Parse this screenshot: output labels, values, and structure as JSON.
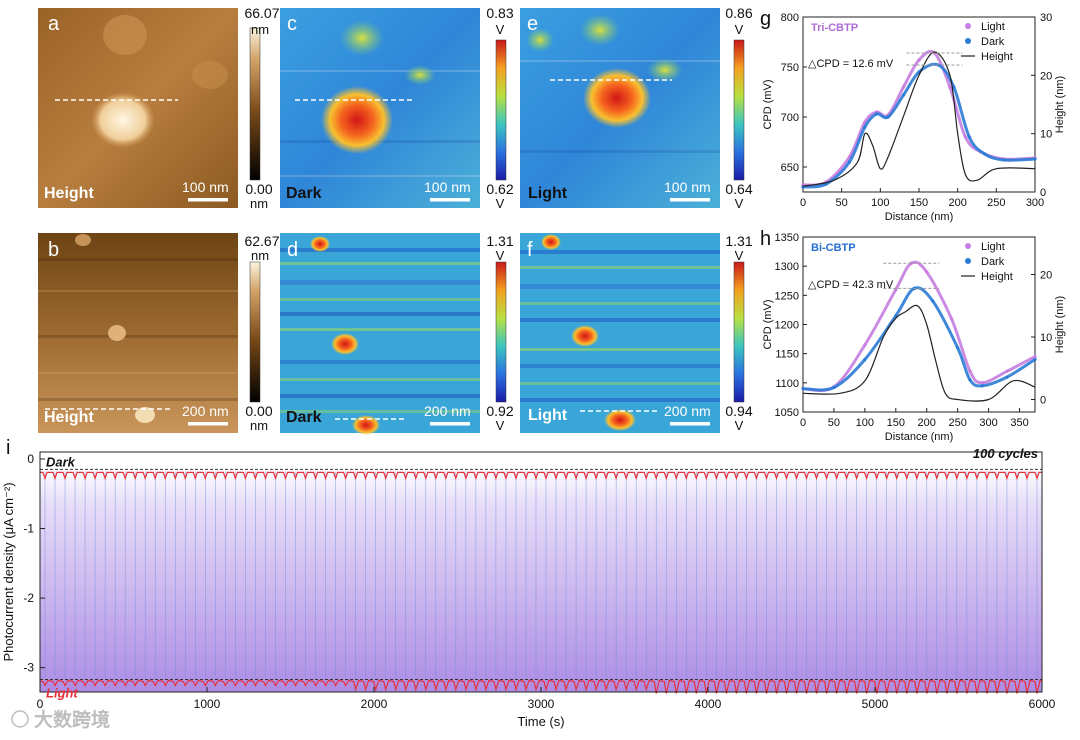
{
  "panels": {
    "a": {
      "letter": "a",
      "label": "Height",
      "scale": "100 nm",
      "cb_max": "66.07",
      "cb_min": "0.00",
      "cb_unit": "nm"
    },
    "b": {
      "letter": "b",
      "label": "Height",
      "scale": "200 nm",
      "cb_max": "62.67",
      "cb_min": "0.00",
      "cb_unit": "nm"
    },
    "c": {
      "letter": "c",
      "label": "Dark",
      "scale": "100 nm",
      "cb_max": "0.83",
      "cb_min": "0.62",
      "cb_unit": "V"
    },
    "d": {
      "letter": "d",
      "label": "Dark",
      "scale": "200 nm",
      "cb_max": "1.31",
      "cb_min": "0.92",
      "cb_unit": "V"
    },
    "e": {
      "letter": "e",
      "label": "Light",
      "scale": "100 nm",
      "cb_max": "0.86",
      "cb_min": "0.64",
      "cb_unit": "V"
    },
    "f": {
      "letter": "f",
      "label": "Light",
      "scale": "200 nm",
      "cb_max": "1.31",
      "cb_min": "0.94",
      "cb_unit": "V"
    }
  },
  "watermark": "大数跨境",
  "colors": {
    "light": "#c77ee0",
    "dark": "#2a7bd6",
    "height": "#222222",
    "tri_label": "#b06bd6",
    "bi_label": "#2a6fd0",
    "light_curve": "#e8303a",
    "fill": "#b48fe8"
  },
  "chart_data": [
    {
      "id": "g",
      "letter": "g",
      "type": "line",
      "title": "Tri-CBTP",
      "annotation": "△CPD = 12.6 mV",
      "xlabel": "Distance (nm)",
      "ylabel": "CPD (mV)",
      "y2label": "Height (nm)",
      "xlim": [
        0,
        300
      ],
      "ylim": [
        625,
        800
      ],
      "y2lim": [
        0,
        30
      ],
      "xticks": [
        0,
        50,
        100,
        150,
        200,
        250,
        300
      ],
      "yticks": [
        650,
        700,
        750,
        800
      ],
      "y2ticks": [
        0,
        10,
        20,
        30
      ],
      "legend": [
        "Light",
        "Dark",
        "Height"
      ],
      "series": [
        {
          "name": "Light",
          "axis": "left",
          "x": [
            0,
            30,
            60,
            80,
            95,
            110,
            130,
            150,
            170,
            190,
            210,
            230,
            260,
            300
          ],
          "y": [
            632,
            635,
            660,
            695,
            705,
            702,
            730,
            757,
            764,
            730,
            680,
            665,
            658,
            659
          ]
        },
        {
          "name": "Dark",
          "axis": "left",
          "x": [
            0,
            30,
            60,
            80,
            95,
            110,
            130,
            150,
            175,
            195,
            215,
            235,
            260,
            300
          ],
          "y": [
            630,
            633,
            655,
            690,
            703,
            700,
            722,
            745,
            752,
            730,
            680,
            663,
            657,
            658
          ]
        },
        {
          "name": "Height",
          "axis": "right",
          "x": [
            0,
            40,
            70,
            80,
            90,
            100,
            110,
            130,
            150,
            170,
            190,
            200,
            210,
            225,
            250,
            300
          ],
          "y": [
            1,
            2,
            5,
            10,
            8,
            4,
            6,
            13,
            20,
            24,
            20,
            10,
            3,
            2,
            4,
            4
          ]
        }
      ]
    },
    {
      "id": "h",
      "letter": "h",
      "type": "line",
      "title": "Bi-CBTP",
      "annotation": "△CPD = 42.3 mV",
      "xlabel": "Distance (nm)",
      "ylabel": "CPD (mV)",
      "y2label": "Height (nm)",
      "xlim": [
        0,
        375
      ],
      "ylim": [
        1050,
        1350
      ],
      "y2lim": [
        -2,
        26
      ],
      "xticks": [
        0,
        50,
        100,
        150,
        200,
        250,
        300,
        350
      ],
      "yticks": [
        1050,
        1100,
        1150,
        1200,
        1250,
        1300,
        1350
      ],
      "y2ticks": [
        0,
        10,
        20
      ],
      "legend": [
        "Light",
        "Dark",
        "Height"
      ],
      "series": [
        {
          "name": "Light",
          "axis": "left",
          "x": [
            0,
            50,
            100,
            150,
            175,
            200,
            240,
            270,
            290,
            330,
            375
          ],
          "y": [
            1090,
            1093,
            1165,
            1260,
            1305,
            1290,
            1210,
            1120,
            1100,
            1120,
            1145
          ]
        },
        {
          "name": "Dark",
          "axis": "left",
          "x": [
            0,
            50,
            100,
            150,
            180,
            210,
            250,
            270,
            290,
            330,
            375
          ],
          "y": [
            1090,
            1092,
            1140,
            1215,
            1262,
            1240,
            1160,
            1105,
            1095,
            1110,
            1140
          ]
        },
        {
          "name": "Height",
          "axis": "right",
          "x": [
            0,
            60,
            100,
            130,
            150,
            165,
            185,
            200,
            215,
            230,
            250,
            300,
            340,
            375
          ],
          "y": [
            1,
            1,
            3,
            10,
            13,
            14,
            15,
            12,
            6,
            1,
            0,
            0,
            3,
            2
          ]
        }
      ]
    },
    {
      "id": "i",
      "letter": "i",
      "type": "line",
      "title": "100 cycles",
      "xlabel": "Time (s)",
      "ylabel": "Photocurrent density (μA cm⁻²)",
      "xlim": [
        0,
        6000
      ],
      "ylim": [
        -3.35,
        0.1
      ],
      "xticks": [
        0,
        1000,
        2000,
        3000,
        4000,
        5000,
        6000
      ],
      "yticks": [
        0,
        -1,
        -2,
        -3
      ],
      "cycles": 100,
      "dark_level": -0.15,
      "light_level": -3.17,
      "dark_label": "Dark",
      "light_label": "Light"
    }
  ]
}
